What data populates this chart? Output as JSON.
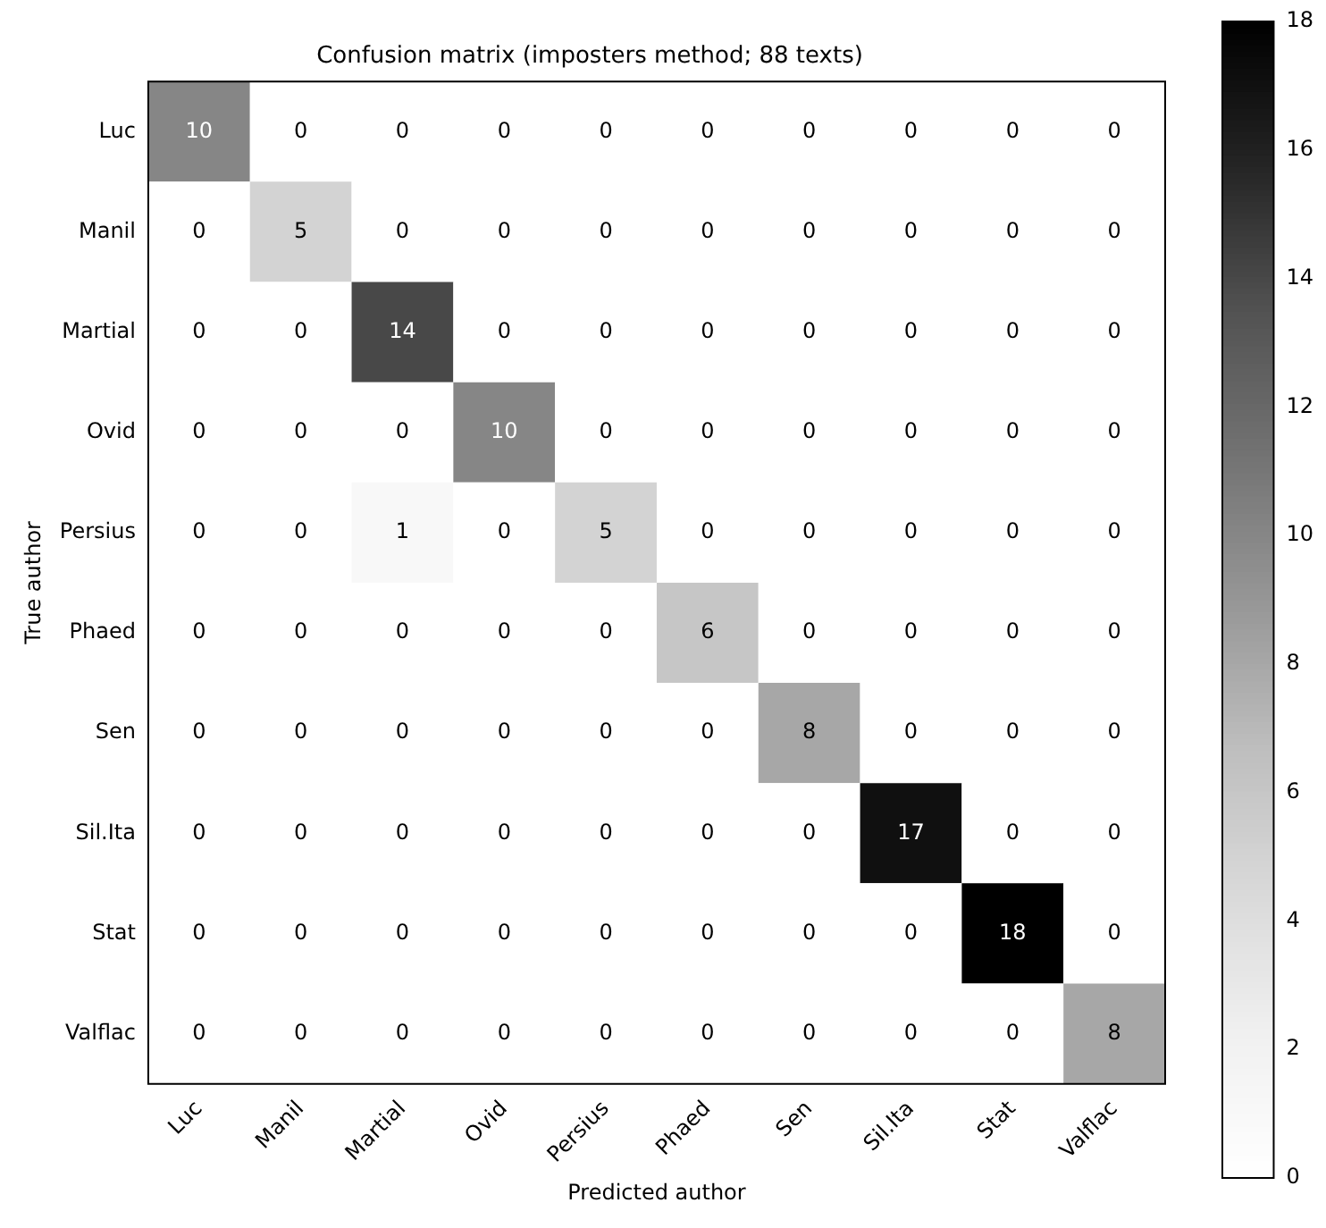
{
  "chart_data": {
    "type": "heatmap",
    "title": "Confusion matrix (imposters method; 88 texts)",
    "xlabel": "Predicted author",
    "ylabel": "True author",
    "categories": [
      "Luc",
      "Manil",
      "Martial",
      "Ovid",
      "Persius",
      "Phaed",
      "Sen",
      "Sil.Ita",
      "Stat",
      "Valflac"
    ],
    "y_categories": [
      "Luc",
      "Manil",
      "Martial",
      "Ovid",
      "Persius",
      "Phaed",
      "Sen",
      "Sil.Ita",
      "Stat",
      "Valflac"
    ],
    "cells": [
      [
        10,
        0,
        0,
        0,
        0,
        0,
        0,
        0,
        0,
        0
      ],
      [
        0,
        5,
        0,
        0,
        0,
        0,
        0,
        0,
        0,
        0
      ],
      [
        0,
        0,
        14,
        0,
        0,
        0,
        0,
        0,
        0,
        0
      ],
      [
        0,
        0,
        0,
        10,
        0,
        0,
        0,
        0,
        0,
        0
      ],
      [
        0,
        0,
        1,
        0,
        5,
        0,
        0,
        0,
        0,
        0
      ],
      [
        0,
        0,
        0,
        0,
        0,
        6,
        0,
        0,
        0,
        0
      ],
      [
        0,
        0,
        0,
        0,
        0,
        0,
        8,
        0,
        0,
        0
      ],
      [
        0,
        0,
        0,
        0,
        0,
        0,
        0,
        17,
        0,
        0
      ],
      [
        0,
        0,
        0,
        0,
        0,
        0,
        0,
        0,
        18,
        0
      ],
      [
        0,
        0,
        0,
        0,
        0,
        0,
        0,
        0,
        0,
        8
      ]
    ],
    "clim": [
      0,
      18
    ],
    "cticks": [
      0,
      2,
      4,
      6,
      8,
      10,
      12,
      14,
      16,
      18
    ],
    "data_labels": true
  }
}
